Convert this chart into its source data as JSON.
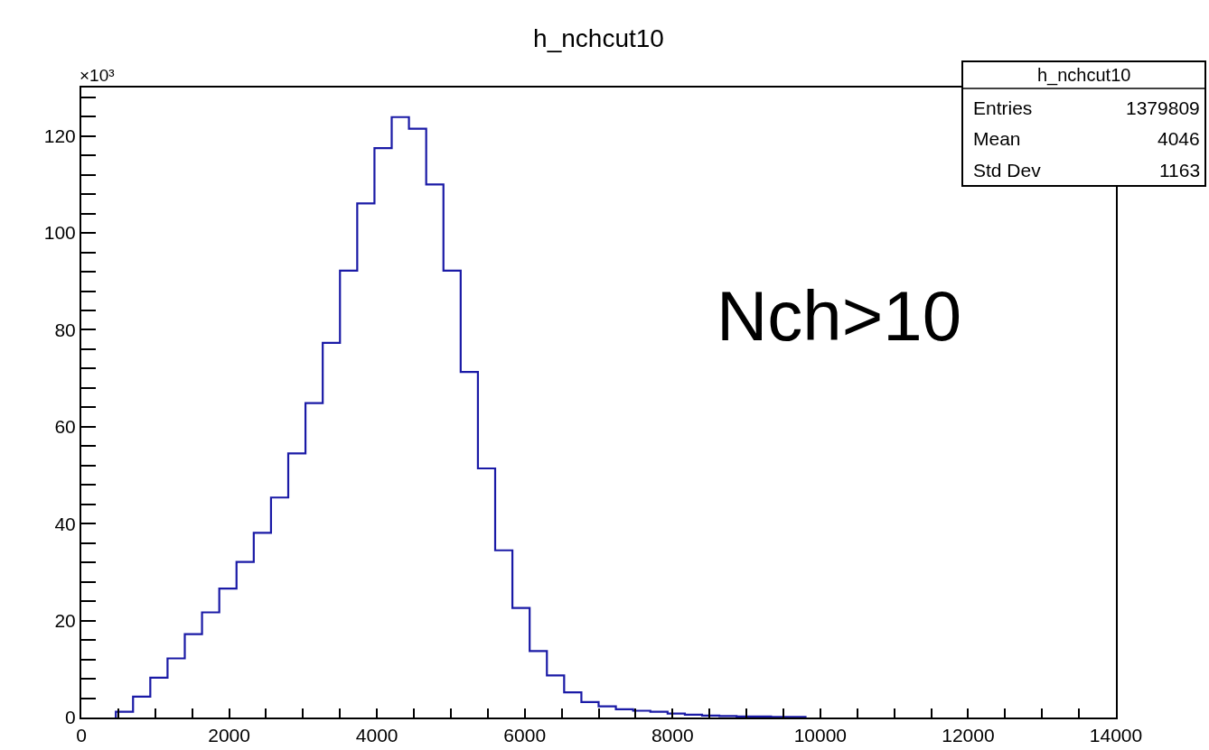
{
  "chart_data": {
    "type": "histogram",
    "title": "h_nchcut10",
    "bins": [
      466.7,
      700,
      933.3,
      1166.7,
      1400,
      1633.3,
      1866.7,
      2100,
      2333.3,
      2566.7,
      2800,
      3033.3,
      3266.7,
      3500,
      3733.3,
      3966.7,
      4200,
      4433.3,
      4666.7,
      4900,
      5133.3,
      5366.7,
      5600,
      5833.3,
      6066.7,
      6300,
      6533.3,
      6766.7,
      7000,
      7233.3,
      7466.7,
      7700,
      7933.3,
      8166.7,
      8400,
      8633.3,
      8866.7,
      9100,
      9333.3,
      9566.7,
      9800
    ],
    "values": [
      1.2,
      4.3,
      8.2,
      12.2,
      17.2,
      21.7,
      26.6,
      32.1,
      38.1,
      45.4,
      54.5,
      64.9,
      77.3,
      92.2,
      106.1,
      117.5,
      123.9,
      121.5,
      110.0,
      92.2,
      71.3,
      51.4,
      34.5,
      22.6,
      13.7,
      8.7,
      5.2,
      3.2,
      2.3,
      1.7,
      1.4,
      1.2,
      0.8,
      0.6,
      0.4,
      0.3,
      0.2,
      0.2,
      0.1,
      0.1
    ],
    "color": "#1a1aa6",
    "xlim": [
      0,
      14000
    ],
    "xticks": [
      0,
      {
        "value": 500,
        "label": null
      },
      {
        "value": 1000,
        "label": null
      },
      {
        "value": 1500,
        "label": null
      },
      2000,
      {
        "value": 2500,
        "label": null
      },
      {
        "value": 3000,
        "label": null
      },
      {
        "value": 3500,
        "label": null
      },
      4000,
      {
        "value": 4500,
        "label": null
      },
      {
        "value": 5000,
        "label": null
      },
      {
        "value": 5500,
        "label": null
      },
      6000,
      {
        "value": 6500,
        "label": null
      },
      {
        "value": 7000,
        "label": null
      },
      {
        "value": 7500,
        "label": null
      },
      8000,
      {
        "value": 8500,
        "label": null
      },
      {
        "value": 9000,
        "label": null
      },
      {
        "value": 9500,
        "label": null
      },
      10000,
      {
        "value": 10500,
        "label": null
      },
      {
        "value": 11000,
        "label": null
      },
      {
        "value": 11500,
        "label": null
      },
      12000,
      {
        "value": 12500,
        "label": null
      },
      {
        "value": 13000,
        "label": null
      },
      {
        "value": 13500,
        "label": null
      },
      14000
    ],
    "ylim": [
      0,
      130
    ],
    "yticks": [
      0,
      {
        "value": 4,
        "label": null
      },
      {
        "value": 8,
        "label": null
      },
      {
        "value": 12,
        "label": null
      },
      {
        "value": 16,
        "label": null
      },
      20,
      {
        "value": 24,
        "label": null
      },
      {
        "value": 28,
        "label": null
      },
      {
        "value": 32,
        "label": null
      },
      {
        "value": 36,
        "label": null
      },
      40,
      {
        "value": 44,
        "label": null
      },
      {
        "value": 48,
        "label": null
      },
      {
        "value": 52,
        "label": null
      },
      {
        "value": 56,
        "label": null
      },
      60,
      {
        "value": 64,
        "label": null
      },
      {
        "value": 68,
        "label": null
      },
      {
        "value": 72,
        "label": null
      },
      {
        "value": 76,
        "label": null
      },
      80,
      {
        "value": 84,
        "label": null
      },
      {
        "value": 88,
        "label": null
      },
      {
        "value": 92,
        "label": null
      },
      {
        "value": 96,
        "label": null
      },
      100,
      {
        "value": 104,
        "label": null
      },
      {
        "value": 108,
        "label": null
      },
      {
        "value": 112,
        "label": null
      },
      {
        "value": 116,
        "label": null
      },
      120,
      {
        "value": 124,
        "label": null
      },
      {
        "value": 128,
        "label": null
      }
    ],
    "annotations": [
      "h_nchcut10",
      "Entries",
      "1379809",
      "Mean",
      "4046",
      "Std Dev",
      "1163",
      "Nch>10",
      "×10³"
    ]
  }
}
